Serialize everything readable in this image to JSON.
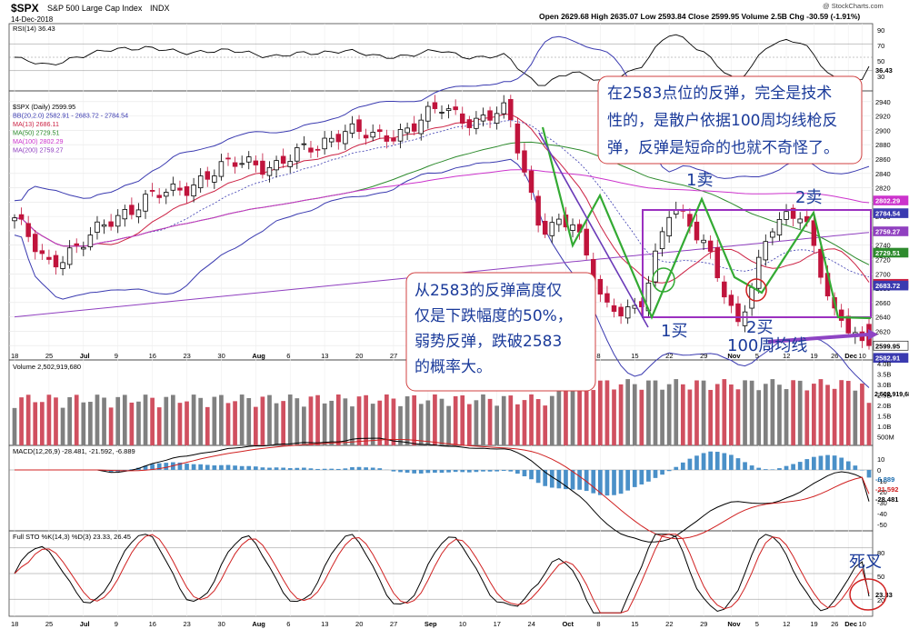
{
  "header": {
    "symbol": "$SPX",
    "name": "S&P 500 Large Cap Index",
    "exchange": "INDX",
    "date": "14-Dec-2018",
    "quote": "Open 2629.68 High 2635.07 Low 2593.84 Close 2599.95 Volume 2.5B Chg -30.59 (-1.91%)",
    "watermark": "@ StockCharts.com"
  },
  "panels": {
    "rsi": {
      "legend": "RSI(14) 36.43",
      "value_label": "36.43",
      "axis": [
        "90",
        "70",
        "50",
        "30"
      ]
    },
    "price": {
      "legend": [
        {
          "text": "$SPX (Daily) 2599.95",
          "color": "#000000"
        },
        {
          "text": "BB(20,2.0) 2582.91 - 2683.72 - 2784.54",
          "color": "#3a3ab0"
        },
        {
          "text": "MA(13) 2686.11",
          "color": "#cc2244"
        },
        {
          "text": "MA(50) 2729.51",
          "color": "#2e8b2e"
        },
        {
          "text": "MA(100) 2802.29",
          "color": "#cc33cc"
        },
        {
          "text": "MA(200) 2759.27",
          "color": "#9040c0"
        }
      ],
      "axis": [
        "2940",
        "2920",
        "2900",
        "2880",
        "2860",
        "2840",
        "2820",
        "2800",
        "2780",
        "2760",
        "2740",
        "2720",
        "2700",
        "2680",
        "2660",
        "2640",
        "2620",
        "2600"
      ],
      "value_badges": [
        {
          "label": "2802.29",
          "color": "#cc33cc"
        },
        {
          "label": "2784.54",
          "color": "#3a3ab0"
        },
        {
          "label": "2759.27",
          "color": "#9040c0"
        },
        {
          "label": "2729.51",
          "color": "#2e8b2e"
        },
        {
          "label": "2686.11",
          "color": "#cc2244"
        },
        {
          "label": "2683.72",
          "color": "#3a3ab0"
        },
        {
          "label": "2599.95",
          "color": "#000000"
        },
        {
          "label": "2582.91",
          "color": "#3a3ab0"
        }
      ]
    },
    "volume": {
      "legend": "Volume 2,502,919,680",
      "axis": [
        "4.0B",
        "3.5B",
        "3.0B",
        "2.5B",
        "2.0B",
        "1.5B",
        "1.0B",
        "500M"
      ],
      "badge": "2,502,919,680"
    },
    "macd": {
      "legend": "MACD(12,26,9) -28.481, -21.592, -6.889",
      "axis": [
        "10",
        "0",
        "-10",
        "-20",
        "-30",
        "-40",
        "-50"
      ],
      "badges": [
        "-6.889",
        "-21.592",
        "-28.481"
      ]
    },
    "sto": {
      "legend": "Full STO %K(14,3) %D(3) 23.33, 26.45",
      "axis": [
        "80",
        "50",
        "20"
      ],
      "badge": "23.33"
    }
  },
  "x_axis_labels": [
    "18",
    "25",
    "Jul",
    "9",
    "16",
    "23",
    "30",
    "Aug",
    "6",
    "13",
    "20",
    "27",
    "Sep",
    "10",
    "17",
    "24",
    "Oct",
    "8",
    "15",
    "22",
    "29",
    "Nov",
    "5",
    "12",
    "19",
    "26",
    "Dec",
    "10"
  ],
  "annotations": {
    "top_note": "在2583点位的反弹，完全是技术性的，是散户依据100周均线枪反弹，反弹是短命的也就不奇怪了。",
    "left_note": "从2583的反弹高度仅仅是下跌幅度的50%，弱势反弹，跌破2583的概率大。",
    "buy1": "1买",
    "sell1": "1卖",
    "buy2": "2买",
    "sell2": "2卖",
    "ma100w": "100周均线",
    "death_cross": "死叉"
  },
  "chart_data": {
    "type": "candlestick",
    "title": "$SPX S&P 500 Large Cap Index INDX (Daily)",
    "period": "Jun 18 2018 - Dec 14 2018",
    "last": {
      "open": 2629.68,
      "high": 2635.07,
      "low": 2593.84,
      "close": 2599.95,
      "change": -30.59,
      "change_pct": -1.91
    },
    "price_range": [
      2580,
      2950
    ],
    "close_path": [
      [
        "Jun 18",
        2773
      ],
      [
        "Jun 25",
        2717
      ],
      [
        "Jul 2",
        2736
      ],
      [
        "Jul 9",
        2780
      ],
      [
        "Jul 16",
        2802
      ],
      [
        "Jul 23",
        2818
      ],
      [
        "Jul 30",
        2840
      ],
      [
        "Aug 6",
        2858
      ],
      [
        "Aug 13",
        2850
      ],
      [
        "Aug 20",
        2875
      ],
      [
        "Aug 27",
        2901
      ],
      [
        "Sep 4",
        2888
      ],
      [
        "Sep 10",
        2904
      ],
      [
        "Sep 17",
        2930
      ],
      [
        "Sep 24",
        2914
      ],
      [
        "Oct 1",
        2925
      ],
      [
        "Oct 8",
        2767
      ],
      [
        "Oct 15",
        2767
      ],
      [
        "Oct 22",
        2658
      ],
      [
        "Oct 29",
        2641
      ],
      [
        "Nov 5",
        2806
      ],
      [
        "Nov 12",
        2736
      ],
      [
        "Nov 19",
        2632
      ],
      [
        "Nov 26",
        2760
      ],
      [
        "Dec 3",
        2790
      ],
      [
        "Dec 10",
        2633
      ],
      [
        "Dec 14",
        2600
      ]
    ],
    "indicators": {
      "BB_lower": 2582.91,
      "BB_middle": 2683.72,
      "BB_upper": 2784.54,
      "MA13": 2686.11,
      "MA50": 2729.51,
      "MA100": 2802.29,
      "MA200": 2759.27,
      "RSI14": 36.43,
      "MACD": -28.481,
      "MACD_signal": -21.592,
      "MACD_hist": -6.889,
      "STO_K": 23.33,
      "STO_D": 26.45,
      "volume": 2502919680
    }
  }
}
